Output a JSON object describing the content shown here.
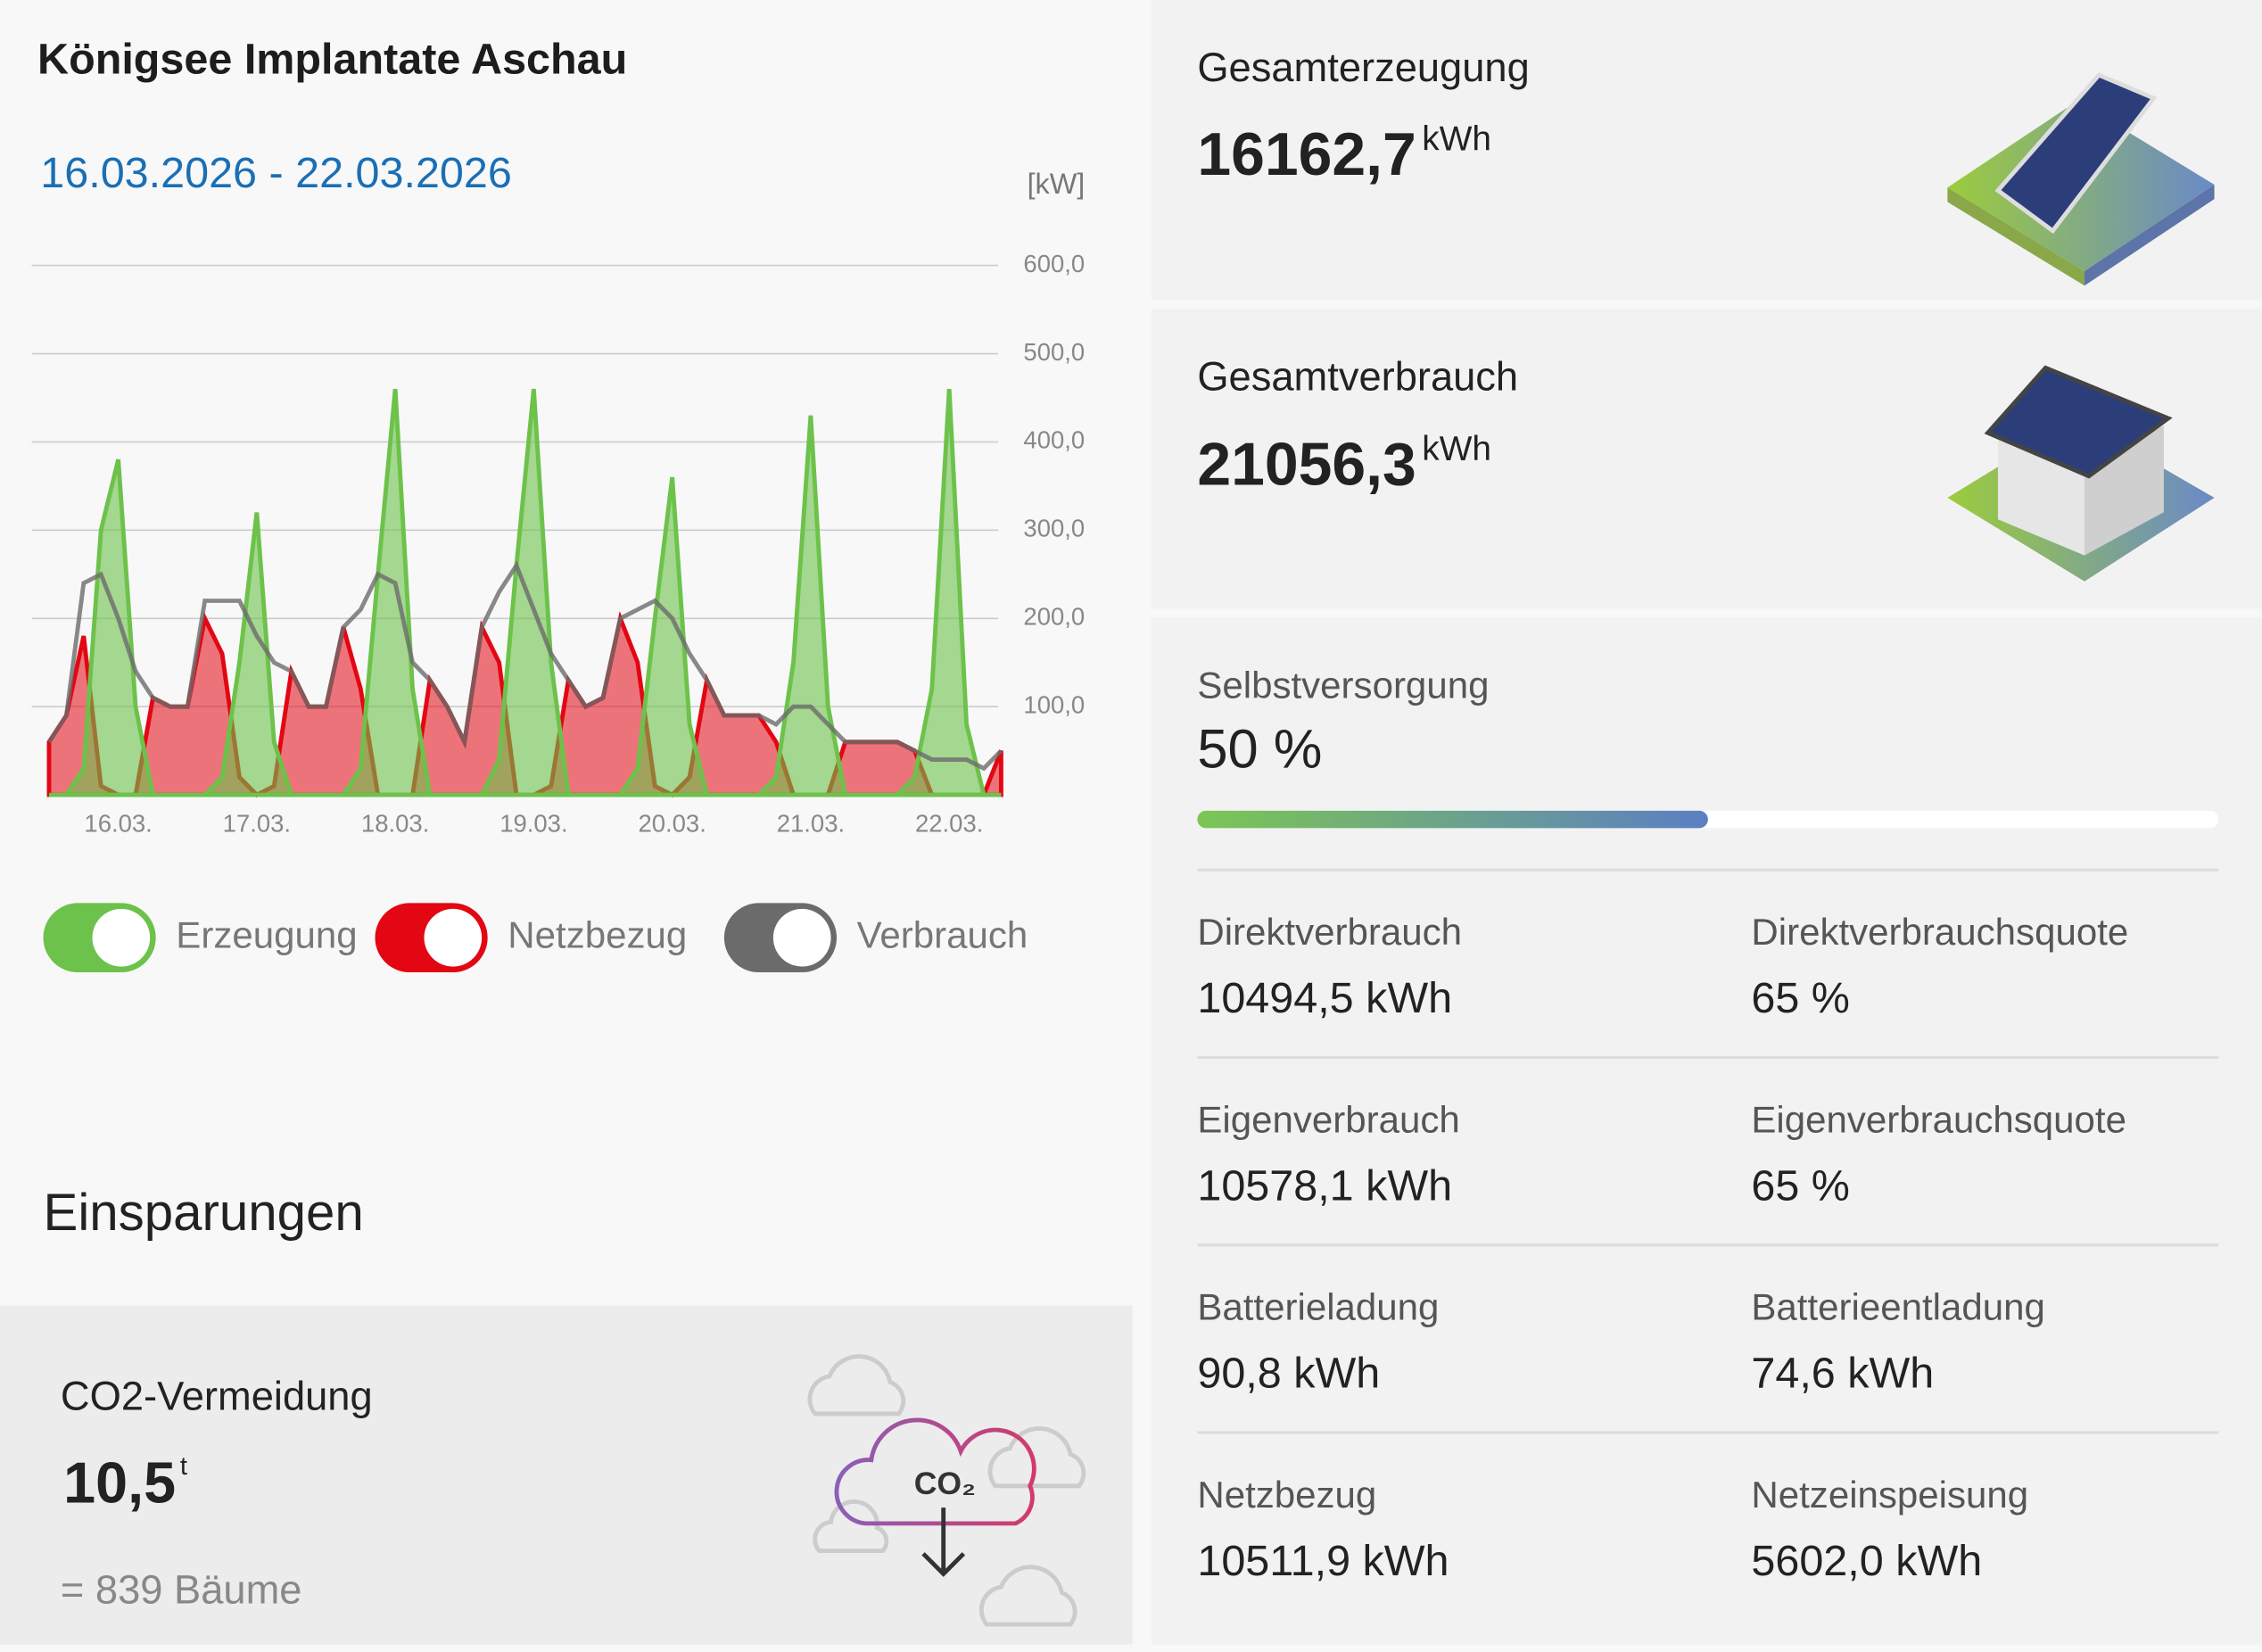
{
  "header": {
    "title": "Königsee Implantate Aschau",
    "date_range": "16.03.2026 - 22.03.2026"
  },
  "chart_data": {
    "type": "area",
    "unit_label": "[kW]",
    "categories": [
      null,
      null,
      null,
      null,
      "16.03.",
      null,
      null,
      null,
      null,
      null,
      null,
      null,
      "17.03.",
      null,
      null,
      null,
      null,
      null,
      null,
      null,
      "18.03.",
      null,
      null,
      null,
      null,
      null,
      null,
      null,
      "19.03.",
      null,
      null,
      null,
      null,
      null,
      null,
      null,
      "20.03.",
      null,
      null,
      null,
      null,
      null,
      null,
      null,
      "21.03.",
      null,
      null,
      null,
      null,
      null,
      null,
      null,
      "22.03.",
      null,
      null,
      null
    ],
    "ylim": [
      0,
      600
    ],
    "yticks": [
      {
        "value": 100,
        "label": "100,0"
      },
      {
        "value": 200,
        "label": "200,0"
      },
      {
        "value": 300,
        "label": "300,0"
      },
      {
        "value": 400,
        "label": "400,0"
      },
      {
        "value": 500,
        "label": "500,0"
      },
      {
        "value": 600,
        "label": "600,0"
      }
    ],
    "grid": true,
    "series": [
      {
        "name": "Erzeugung",
        "color": "#6cc24a",
        "values": [
          0,
          0,
          30,
          300,
          380,
          100,
          0,
          0,
          0,
          0,
          20,
          150,
          320,
          60,
          0,
          0,
          0,
          0,
          30,
          250,
          460,
          120,
          0,
          0,
          0,
          0,
          40,
          260,
          460,
          150,
          0,
          0,
          0,
          0,
          30,
          200,
          360,
          80,
          0,
          0,
          0,
          0,
          20,
          150,
          430,
          100,
          0,
          0,
          0,
          0,
          20,
          120,
          460,
          80,
          0,
          0
        ]
      },
      {
        "name": "Netzbezug",
        "color": "#e30613",
        "values": [
          60,
          90,
          180,
          10,
          0,
          0,
          110,
          100,
          100,
          200,
          160,
          20,
          0,
          10,
          140,
          100,
          100,
          190,
          120,
          0,
          0,
          0,
          130,
          100,
          60,
          190,
          150,
          0,
          0,
          10,
          130,
          100,
          110,
          200,
          150,
          10,
          0,
          20,
          130,
          90,
          90,
          90,
          60,
          0,
          0,
          0,
          60,
          60,
          60,
          60,
          50,
          0,
          0,
          0,
          0,
          50
        ]
      },
      {
        "name": "Verbrauch",
        "color": "#6b6b6b",
        "values": [
          60,
          90,
          240,
          250,
          200,
          140,
          110,
          100,
          100,
          220,
          220,
          220,
          180,
          150,
          140,
          100,
          100,
          190,
          210,
          250,
          240,
          150,
          130,
          100,
          60,
          190,
          230,
          260,
          210,
          160,
          130,
          100,
          110,
          200,
          210,
          220,
          200,
          160,
          130,
          90,
          90,
          90,
          80,
          100,
          100,
          80,
          60,
          60,
          60,
          60,
          50,
          40,
          40,
          40,
          30,
          50
        ]
      }
    ]
  },
  "savings": {
    "title": "Einsparungen",
    "co2_label": "CO2-Vermeidung",
    "co2_value": "10,5",
    "co2_unit": "t",
    "trees": "= 839 Bäume"
  },
  "summary": {
    "generation": {
      "label": "Gesamterzeugung",
      "value": "16162,7",
      "unit": "kWh"
    },
    "consumption": {
      "label": "Gesamtverbrauch",
      "value": "21056,3",
      "unit": "kWh"
    },
    "self_sufficiency": {
      "label": "Selbstversorgung",
      "value": 50,
      "value_label": "50 %"
    },
    "stats": [
      {
        "label": "Direktverbrauch",
        "value": "10494,5 kWh"
      },
      {
        "label": "Direktverbrauchsquote",
        "value": "65 %"
      },
      {
        "label": "Eigenverbrauch",
        "value": "10578,1 kWh"
      },
      {
        "label": "Eigenverbrauchsquote",
        "value": "65 %"
      },
      {
        "label": "Batterieladung",
        "value": "90,8 kWh"
      },
      {
        "label": "Batterieentladung",
        "value": "74,6 kWh"
      },
      {
        "label": "Netzbezug",
        "value": "10511,9 kWh"
      },
      {
        "label": "Netzeinspeisung",
        "value": "5602,0 kWh"
      }
    ]
  }
}
